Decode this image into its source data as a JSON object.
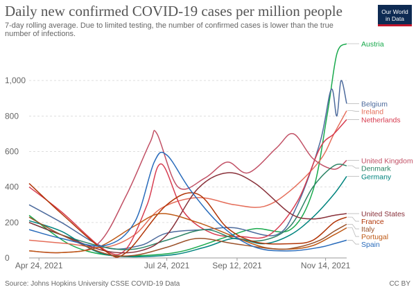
{
  "title": "Daily new confirmed COVID-19 cases per million people",
  "subtitle": "7-day rolling average. Due to limited testing, the number of confirmed cases is lower than the true number of infections.",
  "logo": {
    "line1": "Our World",
    "line2": "in Data"
  },
  "source": "Source: Johns Hopkins University CSSE COVID-19 Data",
  "license": "CC BY",
  "chart_data": {
    "type": "line",
    "title": "Daily new confirmed COVID-19 cases per million people",
    "xlabel": "",
    "ylabel": "",
    "x_ticks": [
      "Apr 24, 2021",
      "Jul 24, 2021",
      "Sep 12, 2021",
      "Nov 14, 2021"
    ],
    "x_range": [
      "Apr 17, 2021",
      "Nov 29, 2021"
    ],
    "y_ticks": [
      0,
      200,
      400,
      600,
      800,
      1000
    ],
    "y_tick_labels": [
      "0",
      "200",
      "400",
      "600",
      "800",
      "1,000"
    ],
    "ylim": [
      0,
      1200
    ],
    "grid": "horizontal dashed",
    "legend": "line labels at right end",
    "series": [
      {
        "name": "Austria",
        "color": "#18a94c",
        "x": [
          "2021-04-17",
          "2021-05-15",
          "2021-06-10",
          "2021-07-10",
          "2021-08-05",
          "2021-09-05",
          "2021-09-25",
          "2021-10-20",
          "2021-11-05",
          "2021-11-15",
          "2021-11-22",
          "2021-11-29"
        ],
        "values": [
          240,
          80,
          18,
          15,
          40,
          120,
          165,
          160,
          380,
          800,
          1150,
          1230
        ]
      },
      {
        "name": "Belgium",
        "color": "#4c6a9c",
        "x": [
          "2021-04-17",
          "2021-05-10",
          "2021-06-10",
          "2021-07-05",
          "2021-07-24",
          "2021-08-20",
          "2021-09-10",
          "2021-10-10",
          "2021-10-25",
          "2021-11-10",
          "2021-11-18",
          "2021-11-22",
          "2021-11-25",
          "2021-11-29"
        ],
        "values": [
          300,
          200,
          60,
          70,
          140,
          160,
          170,
          130,
          300,
          650,
          950,
          800,
          1000,
          870
        ]
      },
      {
        "name": "Ireland",
        "color": "#e56e5a",
        "x": [
          "2021-04-17",
          "2021-05-15",
          "2021-06-10",
          "2021-07-01",
          "2021-07-20",
          "2021-08-15",
          "2021-09-10",
          "2021-10-01",
          "2021-10-20",
          "2021-11-10",
          "2021-11-20",
          "2021-11-29"
        ],
        "values": [
          100,
          80,
          60,
          130,
          280,
          340,
          300,
          290,
          380,
          550,
          700,
          830
        ]
      },
      {
        "name": "Netherlands",
        "color": "#d73c50",
        "x": [
          "2021-04-17",
          "2021-05-10",
          "2021-06-10",
          "2021-06-25",
          "2021-07-10",
          "2021-07-20",
          "2021-08-05",
          "2021-08-25",
          "2021-09-15",
          "2021-10-05",
          "2021-10-25",
          "2021-11-10",
          "2021-11-20",
          "2021-11-29"
        ],
        "values": [
          400,
          260,
          45,
          50,
          300,
          530,
          260,
          140,
          120,
          130,
          320,
          620,
          700,
          780
        ]
      },
      {
        "name": "United Kingdom",
        "color": "#c15065",
        "x": [
          "2021-04-17",
          "2021-05-10",
          "2021-06-05",
          "2021-06-25",
          "2021-07-12",
          "2021-07-17",
          "2021-08-01",
          "2021-08-20",
          "2021-09-05",
          "2021-09-20",
          "2021-10-10",
          "2021-10-22",
          "2021-11-05",
          "2021-11-20",
          "2021-11-29"
        ],
        "values": [
          40,
          30,
          80,
          350,
          650,
          700,
          400,
          450,
          540,
          480,
          620,
          700,
          560,
          500,
          550
        ]
      },
      {
        "name": "Denmark",
        "color": "#2c8465",
        "x": [
          "2021-04-17",
          "2021-05-10",
          "2021-06-10",
          "2021-07-01",
          "2021-07-24",
          "2021-08-20",
          "2021-09-10",
          "2021-10-01",
          "2021-10-20",
          "2021-11-05",
          "2021-11-20",
          "2021-11-29"
        ],
        "values": [
          200,
          130,
          60,
          50,
          100,
          160,
          110,
          100,
          180,
          400,
          520,
          520
        ]
      },
      {
        "name": "Germany",
        "color": "#00847e",
        "x": [
          "2021-04-17",
          "2021-05-10",
          "2021-06-10",
          "2021-07-24",
          "2021-08-20",
          "2021-09-10",
          "2021-10-01",
          "2021-10-20",
          "2021-11-05",
          "2021-11-20",
          "2021-11-29"
        ],
        "values": [
          210,
          150,
          20,
          15,
          60,
          110,
          80,
          130,
          230,
          360,
          460
        ]
      },
      {
        "name": "United States",
        "color": "#883039",
        "x": [
          "2021-04-17",
          "2021-05-10",
          "2021-06-10",
          "2021-07-05",
          "2021-07-24",
          "2021-08-15",
          "2021-09-05",
          "2021-09-25",
          "2021-10-20",
          "2021-11-05",
          "2021-11-20",
          "2021-11-29"
        ],
        "values": [
          200,
          130,
          40,
          40,
          130,
          390,
          480,
          420,
          250,
          220,
          240,
          250
        ]
      },
      {
        "name": "France",
        "color": "#b13507",
        "x": [
          "2021-04-17",
          "2021-05-10",
          "2021-06-10",
          "2021-06-25",
          "2021-07-24",
          "2021-08-15",
          "2021-09-05",
          "2021-09-25",
          "2021-10-20",
          "2021-11-05",
          "2021-11-20",
          "2021-11-29"
        ],
        "values": [
          420,
          250,
          40,
          30,
          300,
          360,
          170,
          90,
          80,
          100,
          200,
          230
        ]
      },
      {
        "name": "Portugal",
        "color": "#be5915",
        "x": [
          "2021-04-17",
          "2021-05-10",
          "2021-06-05",
          "2021-07-01",
          "2021-07-20",
          "2021-08-15",
          "2021-09-10",
          "2021-10-01",
          "2021-10-20",
          "2021-11-05",
          "2021-11-20",
          "2021-11-29"
        ],
        "values": [
          40,
          30,
          60,
          180,
          250,
          200,
          120,
          60,
          50,
          70,
          130,
          170
        ]
      },
      {
        "name": "Italy",
        "color": "#9a5129",
        "x": [
          "2021-04-17",
          "2021-05-10",
          "2021-06-10",
          "2021-07-01",
          "2021-07-24",
          "2021-08-15",
          "2021-09-10",
          "2021-10-10",
          "2021-10-25",
          "2021-11-10",
          "2021-11-20",
          "2021-11-29"
        ],
        "values": [
          230,
          130,
          25,
          15,
          60,
          110,
          80,
          50,
          60,
          100,
          150,
          190
        ]
      },
      {
        "name": "Spain",
        "color": "#286bbb",
        "x": [
          "2021-04-17",
          "2021-05-10",
          "2021-06-10",
          "2021-07-01",
          "2021-07-15",
          "2021-07-24",
          "2021-08-10",
          "2021-09-01",
          "2021-09-25",
          "2021-10-20",
          "2021-11-10",
          "2021-11-20",
          "2021-11-29"
        ],
        "values": [
          160,
          110,
          70,
          200,
          540,
          580,
          380,
          180,
          60,
          40,
          60,
          80,
          100
        ]
      }
    ]
  }
}
